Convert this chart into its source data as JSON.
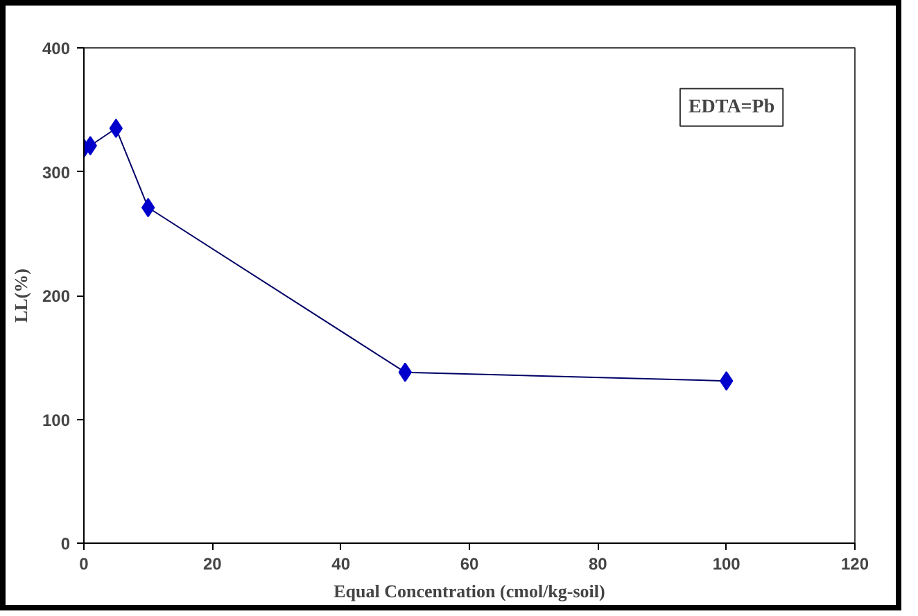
{
  "chart_data": {
    "type": "line",
    "xlabel": "Equal Concentration (cmol/kg-soil)",
    "ylabel": "LL(%)",
    "annotations": [
      "EDTA=Pb"
    ],
    "x": [
      0,
      1,
      5,
      10,
      50,
      100
    ],
    "series": [
      {
        "color": "#0000cc",
        "values": [
          319,
          321,
          335,
          271,
          138,
          131
        ]
      }
    ],
    "xlim": [
      0,
      120
    ],
    "xticks": [
      0,
      20,
      40,
      60,
      80,
      100,
      120
    ],
    "ylim": [
      0,
      400
    ],
    "yticks": [
      0,
      100,
      200,
      300,
      400
    ],
    "grid": false,
    "marker": "diamond",
    "line_style": "solid"
  }
}
